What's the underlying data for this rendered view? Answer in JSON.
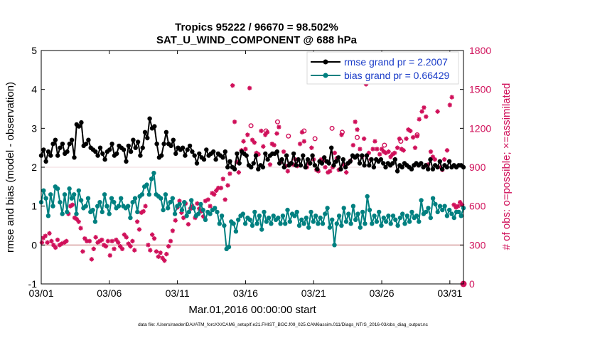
{
  "chart_data": {
    "type": "line",
    "title_line1": "Tropics 95222 / 96670 = 98.502%",
    "title_line2": "SAT_U_WIND_COMPONENT @ 688 hPa",
    "xlabel": "Mar.01,2016 00:00:00 start",
    "ylabel_left": "rmse and bias (model - observation)",
    "ylabel_right": "# of obs: o=possible; ×=assimilated",
    "footer": "data file: /Users/raeder/DAI/ATM_forcXX/CAM6_setup/f.e21.FHIST_BGC.f09_025.CAM6assim.011/Diags_NTrS_2016-03/obs_diag_output.nc",
    "xlim": [
      1,
      32
    ],
    "ylim_left": [
      -1,
      5
    ],
    "ylim_right": [
      0,
      1800
    ],
    "x_ticks": [
      {
        "value": 1,
        "label": "03/01"
      },
      {
        "value": 6,
        "label": "03/06"
      },
      {
        "value": 11,
        "label": "03/11"
      },
      {
        "value": 16,
        "label": "03/16"
      },
      {
        "value": 21,
        "label": "03/21"
      },
      {
        "value": 26,
        "label": "03/26"
      },
      {
        "value": 31,
        "label": "03/31"
      }
    ],
    "y_ticks_left": [
      "-1",
      "0",
      "1",
      "2",
      "3",
      "4",
      "5"
    ],
    "y_ticks_right": [
      "0",
      "300",
      "600",
      "900",
      "1200",
      "1500",
      "1800"
    ],
    "series": [
      {
        "name": "rmse grand pr = 2.2007",
        "color": "#000000",
        "values": [
          2.3,
          2.45,
          2.15,
          2.4,
          2.3,
          2.6,
          2.7,
          2.3,
          2.5,
          2.6,
          2.35,
          2.4,
          2.6,
          2.7,
          2.25,
          3.1,
          3.05,
          3.15,
          2.55,
          2.6,
          2.7,
          2.5,
          2.45,
          2.4,
          2.3,
          2.5,
          2.35,
          2.2,
          2.4,
          2.45,
          2.6,
          2.3,
          2.35,
          2.55,
          2.5,
          2.45,
          2.15,
          2.55,
          2.4,
          2.7,
          2.5,
          2.65,
          2.3,
          2.5,
          2.9,
          2.75,
          3.25,
          3.0,
          3.05,
          2.6,
          2.25,
          2.3,
          2.6,
          2.9,
          2.6,
          2.55,
          2.7,
          2.35,
          2.5,
          2.45,
          2.5,
          2.3,
          2.45,
          2.55,
          2.4,
          2.3,
          2.1,
          2.35,
          2.25,
          2.2,
          2.45,
          2.3,
          2.35,
          2.4,
          2.2,
          2.35,
          2.3,
          2.25,
          2.4,
          2.0,
          2.15,
          2.0,
          1.95,
          2.35,
          2.1,
          2.4,
          2.35,
          2.3,
          2.05,
          2.0,
          2.1,
          2.3,
          1.95,
          2.05,
          2.0,
          2.35,
          2.2,
          2.3,
          2.35,
          2.35,
          2.4,
          2.1,
          2.2,
          2.0,
          2.3,
          2.05,
          2.1,
          2.35,
          2.05,
          2.2,
          2.05,
          2.3,
          2.0,
          2.2,
          2.1,
          2.3,
          2.05,
          1.95,
          2.15,
          2.1,
          2.25,
          2.15,
          2.1,
          2.5,
          2.05,
          2.15,
          2.25,
          1.95,
          2.2,
          2.0,
          2.1,
          2.15,
          2.3,
          2.25,
          2.3,
          2.1,
          2.3,
          2.05,
          2.3,
          2.05,
          2.2,
          2.0,
          2.2,
          2.15,
          2.2,
          2.1,
          2.0,
          2.1,
          2.05,
          2.1,
          2.2,
          1.9,
          2.05,
          2.0,
          2.1,
          2.05,
          2.0,
          1.95,
          2.05,
          2.1,
          2.05,
          2.1,
          2.0,
          2.05,
          1.95,
          2.2,
          1.95,
          2.05,
          2.0,
          2.15,
          1.95,
          2.05,
          2.0,
          2.15,
          2.0,
          2.05,
          2.0,
          2.05,
          2.05,
          2.0
        ]
      },
      {
        "name": "bias grand pr = 0.66429",
        "color": "#008080",
        "values": [
          1.1,
          1.4,
          1.2,
          0.75,
          1.3,
          1.0,
          1.5,
          1.45,
          1.1,
          0.8,
          1.3,
          0.85,
          1.45,
          1.2,
          1.3,
          0.8,
          1.4,
          1.15,
          0.95,
          1.0,
          1.2,
          0.85,
          0.9,
          0.6,
          1.0,
          1.1,
          0.85,
          1.3,
          1.0,
          0.8,
          1.2,
          1.1,
          0.95,
          1.0,
          1.2,
          1.0,
          0.95,
          1.0,
          0.7,
          1.1,
          1.2,
          0.85,
          1.25,
          1.3,
          1.5,
          1.55,
          1.3,
          1.7,
          1.85,
          1.3,
          1.25,
          1.2,
          0.9,
          1.3,
          0.95,
          1.1,
          1.2,
          0.8,
          1.0,
          1.05,
          0.9,
          1.1,
          0.75,
          0.85,
          1.15,
          0.95,
          0.75,
          0.8,
          1.05,
          0.9,
          0.65,
          0.85,
          0.8,
          0.9,
          0.95,
          0.85,
          0.55,
          0.75,
          0.5,
          -0.1,
          -0.05,
          0.6,
          0.55,
          0.35,
          0.65,
          0.75,
          0.8,
          0.55,
          0.7,
          0.65,
          0.5,
          0.85,
          0.55,
          0.75,
          0.4,
          0.85,
          0.6,
          0.7,
          0.55,
          0.75,
          0.65,
          0.7,
          0.55,
          0.75,
          0.55,
          0.9,
          0.6,
          0.8,
          0.75,
          0.85,
          0.5,
          0.65,
          0.55,
          0.7,
          0.45,
          0.85,
          0.6,
          0.75,
          0.55,
          0.7,
          0.55,
          0.8,
          0.95,
          0.45,
          0.65,
          0.0,
          0.55,
          0.75,
          0.5,
          0.95,
          0.6,
          0.8,
          0.55,
          1.0,
          0.65,
          0.8,
          0.45,
          0.85,
          0.55,
          1.25,
          0.9,
          0.55,
          0.75,
          0.6,
          0.85,
          0.5,
          0.7,
          0.6,
          0.75,
          0.55,
          0.75,
          0.65,
          0.5,
          0.7,
          0.8,
          0.55,
          0.75,
          0.6,
          0.85,
          0.7,
          0.75,
          0.6,
          1.15,
          0.8,
          0.85,
          0.95,
          0.7,
          1.2,
          1.05,
          0.85,
          1.0,
          0.9,
          1.0,
          0.75,
          0.9,
          0.8,
          0.7,
          0.85,
          0.85,
          0.75,
          0.95
        ]
      }
    ],
    "obs_scatter": {
      "name": "# of obs",
      "color": "#d0105a",
      "assimilated": [
        {
          "x": 1.05,
          "y": 320
        },
        {
          "x": 1.15,
          "y": 355
        },
        {
          "x": 1.3,
          "y": 370
        },
        {
          "x": 1.45,
          "y": 320
        },
        {
          "x": 1.6,
          "y": 390
        },
        {
          "x": 1.75,
          "y": 330
        },
        {
          "x": 1.9,
          "y": 300
        },
        {
          "x": 2.05,
          "y": 280
        },
        {
          "x": 2.2,
          "y": 340
        },
        {
          "x": 2.35,
          "y": 300
        },
        {
          "x": 2.5,
          "y": 310
        },
        {
          "x": 2.7,
          "y": 320
        },
        {
          "x": 2.85,
          "y": 330
        },
        {
          "x": 3.0,
          "y": 540
        },
        {
          "x": 3.15,
          "y": 600
        },
        {
          "x": 3.3,
          "y": 610
        },
        {
          "x": 3.45,
          "y": 510
        },
        {
          "x": 3.6,
          "y": 500
        },
        {
          "x": 3.75,
          "y": 480
        },
        {
          "x": 3.9,
          "y": 430
        },
        {
          "x": 4.05,
          "y": 250
        },
        {
          "x": 4.2,
          "y": 350
        },
        {
          "x": 4.35,
          "y": 330
        },
        {
          "x": 4.55,
          "y": 330
        },
        {
          "x": 4.7,
          "y": 190
        },
        {
          "x": 4.85,
          "y": 270
        },
        {
          "x": 5.0,
          "y": 360
        },
        {
          "x": 5.15,
          "y": 320
        },
        {
          "x": 5.3,
          "y": 330
        },
        {
          "x": 5.45,
          "y": 340
        },
        {
          "x": 5.6,
          "y": 300
        },
        {
          "x": 5.75,
          "y": 290
        },
        {
          "x": 5.9,
          "y": 330
        },
        {
          "x": 6.05,
          "y": 220
        },
        {
          "x": 6.2,
          "y": 330
        },
        {
          "x": 6.35,
          "y": 270
        },
        {
          "x": 6.5,
          "y": 340
        },
        {
          "x": 6.65,
          "y": 320
        },
        {
          "x": 6.8,
          "y": 290
        },
        {
          "x": 6.95,
          "y": 270
        },
        {
          "x": 7.1,
          "y": 380
        },
        {
          "x": 7.25,
          "y": 360
        },
        {
          "x": 7.4,
          "y": 310
        },
        {
          "x": 7.55,
          "y": 290
        },
        {
          "x": 7.7,
          "y": 330
        },
        {
          "x": 7.85,
          "y": 260
        },
        {
          "x": 8.05,
          "y": 480
        },
        {
          "x": 8.2,
          "y": 420
        },
        {
          "x": 8.35,
          "y": 550
        },
        {
          "x": 8.5,
          "y": 560
        },
        {
          "x": 8.65,
          "y": 600
        },
        {
          "x": 8.85,
          "y": 300
        },
        {
          "x": 9.0,
          "y": 260
        },
        {
          "x": 9.15,
          "y": 380
        },
        {
          "x": 9.3,
          "y": 350
        },
        {
          "x": 9.45,
          "y": 250
        },
        {
          "x": 9.6,
          "y": 210
        },
        {
          "x": 9.75,
          "y": 240
        },
        {
          "x": 9.9,
          "y": 200
        },
        {
          "x": 10.05,
          "y": 180
        },
        {
          "x": 10.2,
          "y": 230
        },
        {
          "x": 10.35,
          "y": 290
        },
        {
          "x": 10.5,
          "y": 330
        },
        {
          "x": 10.65,
          "y": 410
        },
        {
          "x": 10.85,
          "y": 490
        },
        {
          "x": 11.0,
          "y": 590
        },
        {
          "x": 11.15,
          "y": 640
        },
        {
          "x": 11.3,
          "y": 550
        },
        {
          "x": 11.45,
          "y": 510
        },
        {
          "x": 11.6,
          "y": 620
        },
        {
          "x": 11.8,
          "y": 460
        },
        {
          "x": 11.95,
          "y": 580
        },
        {
          "x": 12.1,
          "y": 600
        },
        {
          "x": 12.3,
          "y": 510
        },
        {
          "x": 12.45,
          "y": 620
        },
        {
          "x": 12.6,
          "y": 580
        },
        {
          "x": 12.75,
          "y": 560
        },
        {
          "x": 12.9,
          "y": 520
        },
        {
          "x": 13.05,
          "y": 640
        },
        {
          "x": 13.25,
          "y": 650
        },
        {
          "x": 13.4,
          "y": 600
        },
        {
          "x": 13.55,
          "y": 700
        },
        {
          "x": 13.7,
          "y": 690
        },
        {
          "x": 13.85,
          "y": 720
        },
        {
          "x": 14.0,
          "y": 740
        },
        {
          "x": 14.2,
          "y": 740
        },
        {
          "x": 14.35,
          "y": 810
        },
        {
          "x": 14.5,
          "y": 650
        },
        {
          "x": 14.7,
          "y": 760
        },
        {
          "x": 14.85,
          "y": 850
        },
        {
          "x": 15.05,
          "y": 1530
        },
        {
          "x": 15.2,
          "y": 1250
        },
        {
          "x": 15.35,
          "y": 940
        },
        {
          "x": 15.5,
          "y": 860
        },
        {
          "x": 15.7,
          "y": 1030
        },
        {
          "x": 15.85,
          "y": 1100
        },
        {
          "x": 16.0,
          "y": 1040
        },
        {
          "x": 16.15,
          "y": 1150
        },
        {
          "x": 16.3,
          "y": 1510
        },
        {
          "x": 16.5,
          "y": 1110
        },
        {
          "x": 16.65,
          "y": 1090
        },
        {
          "x": 16.8,
          "y": 1010
        },
        {
          "x": 16.95,
          "y": 1000
        },
        {
          "x": 17.15,
          "y": 1180
        },
        {
          "x": 17.3,
          "y": 1060
        },
        {
          "x": 17.45,
          "y": 1150
        },
        {
          "x": 17.6,
          "y": 1170
        },
        {
          "x": 17.8,
          "y": 920
        },
        {
          "x": 17.95,
          "y": 1080
        },
        {
          "x": 18.1,
          "y": 1070
        },
        {
          "x": 18.3,
          "y": 1160
        },
        {
          "x": 18.45,
          "y": 1210
        },
        {
          "x": 18.6,
          "y": 940
        },
        {
          "x": 18.8,
          "y": 1020
        },
        {
          "x": 18.95,
          "y": 910
        },
        {
          "x": 19.1,
          "y": 870
        },
        {
          "x": 19.3,
          "y": 930
        },
        {
          "x": 19.5,
          "y": 920
        },
        {
          "x": 19.65,
          "y": 960
        },
        {
          "x": 19.8,
          "y": 910
        },
        {
          "x": 20.0,
          "y": 1080
        },
        {
          "x": 20.15,
          "y": 1170
        },
        {
          "x": 20.3,
          "y": 1100
        },
        {
          "x": 20.5,
          "y": 900
        },
        {
          "x": 20.65,
          "y": 930
        },
        {
          "x": 20.85,
          "y": 1050
        },
        {
          "x": 21.0,
          "y": 960
        },
        {
          "x": 21.2,
          "y": 880
        },
        {
          "x": 21.35,
          "y": 870
        },
        {
          "x": 21.55,
          "y": 960
        },
        {
          "x": 21.7,
          "y": 950
        },
        {
          "x": 21.85,
          "y": 900
        },
        {
          "x": 22.05,
          "y": 860
        },
        {
          "x": 22.2,
          "y": 870
        },
        {
          "x": 22.4,
          "y": 900
        },
        {
          "x": 22.55,
          "y": 1010
        },
        {
          "x": 22.7,
          "y": 970
        },
        {
          "x": 22.85,
          "y": 880
        },
        {
          "x": 23.05,
          "y": 1150
        },
        {
          "x": 23.2,
          "y": 920
        },
        {
          "x": 23.4,
          "y": 860
        },
        {
          "x": 23.55,
          "y": 930
        },
        {
          "x": 23.7,
          "y": 950
        },
        {
          "x": 23.9,
          "y": 1070
        },
        {
          "x": 24.05,
          "y": 1250
        },
        {
          "x": 24.2,
          "y": 1190
        },
        {
          "x": 24.4,
          "y": 1040
        },
        {
          "x": 24.55,
          "y": 980
        },
        {
          "x": 24.7,
          "y": 1120
        },
        {
          "x": 24.85,
          "y": 1540
        },
        {
          "x": 25.05,
          "y": 1010
        },
        {
          "x": 25.2,
          "y": 960
        },
        {
          "x": 25.35,
          "y": 1040
        },
        {
          "x": 25.5,
          "y": 1100
        },
        {
          "x": 25.65,
          "y": 1040
        },
        {
          "x": 25.85,
          "y": 1000
        },
        {
          "x": 26.0,
          "y": 1040
        },
        {
          "x": 26.15,
          "y": 1020
        },
        {
          "x": 26.3,
          "y": 1010
        },
        {
          "x": 26.5,
          "y": 1020
        },
        {
          "x": 26.65,
          "y": 980
        },
        {
          "x": 26.8,
          "y": 1000
        },
        {
          "x": 26.95,
          "y": 1010
        },
        {
          "x": 27.15,
          "y": 1050
        },
        {
          "x": 27.3,
          "y": 1120
        },
        {
          "x": 27.45,
          "y": 1040
        },
        {
          "x": 27.6,
          "y": 1030
        },
        {
          "x": 27.8,
          "y": 1120
        },
        {
          "x": 27.95,
          "y": 1190
        },
        {
          "x": 28.1,
          "y": 1180
        },
        {
          "x": 28.3,
          "y": 1130
        },
        {
          "x": 28.45,
          "y": 1050
        },
        {
          "x": 28.6,
          "y": 1140
        },
        {
          "x": 28.75,
          "y": 1270
        },
        {
          "x": 28.95,
          "y": 1330
        },
        {
          "x": 29.1,
          "y": 1360
        },
        {
          "x": 29.25,
          "y": 1290
        },
        {
          "x": 29.4,
          "y": 920
        },
        {
          "x": 29.6,
          "y": 1020
        },
        {
          "x": 29.75,
          "y": 980
        },
        {
          "x": 29.9,
          "y": 960
        },
        {
          "x": 30.1,
          "y": 1330
        },
        {
          "x": 30.3,
          "y": 900
        },
        {
          "x": 30.45,
          "y": 880
        },
        {
          "x": 30.6,
          "y": 960
        },
        {
          "x": 30.8,
          "y": 1030
        },
        {
          "x": 31.0,
          "y": 1380
        },
        {
          "x": 31.15,
          "y": 1440
        },
        {
          "x": 31.3,
          "y": 610
        },
        {
          "x": 31.45,
          "y": 590
        },
        {
          "x": 31.6,
          "y": 600
        },
        {
          "x": 31.75,
          "y": 630
        },
        {
          "x": 31.9,
          "y": 610
        }
      ],
      "possible": [
        {
          "x": 16.4,
          "y": 1220
        },
        {
          "x": 18.35,
          "y": 1250
        },
        {
          "x": 20.3,
          "y": 1180
        },
        {
          "x": 22.35,
          "y": 1200
        },
        {
          "x": 23.1,
          "y": 1170
        },
        {
          "x": 26.2,
          "y": 1070
        },
        {
          "x": 28.6,
          "y": 1150
        },
        {
          "x": 17.5,
          "y": 1180
        },
        {
          "x": 19.15,
          "y": 1140
        },
        {
          "x": 21.1,
          "y": 1120
        },
        {
          "x": 24.2,
          "y": 1130
        },
        {
          "x": 27.4,
          "y": 1100
        }
      ],
      "edge_marker": {
        "x": 32,
        "y": 0
      }
    }
  }
}
